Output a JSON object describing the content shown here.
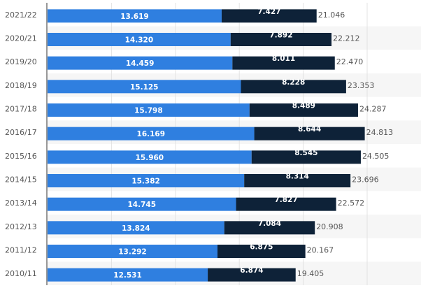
{
  "chart_data": {
    "type": "bar",
    "orientation": "horizontal",
    "stacked": true,
    "categories": [
      "2021/22",
      "2020/21",
      "2019/20",
      "2018/19",
      "2017/18",
      "2016/17",
      "2015/16",
      "2014/15",
      "2013/14",
      "2012/13",
      "2011/12",
      "2010/11"
    ],
    "series": [
      {
        "color": "#2f7fe0",
        "values": [
          13.619,
          14.32,
          14.459,
          15.125,
          15.798,
          16.169,
          15.96,
          15.382,
          14.745,
          13.824,
          13.292,
          12.531
        ],
        "labels": [
          "13.619",
          "14.320",
          "14.459",
          "15.125",
          "15.798",
          "16.169",
          "15.960",
          "15.382",
          "14.745",
          "13.824",
          "13.292",
          "12.531"
        ]
      },
      {
        "color": "#0e2238",
        "values": [
          7.427,
          7.892,
          8.011,
          8.228,
          8.489,
          8.644,
          8.545,
          8.314,
          7.827,
          7.084,
          6.875,
          6.874
        ],
        "labels": [
          "7.427",
          "7.892",
          "8.011",
          "8.228",
          "8.489",
          "8.644",
          "8.545",
          "8.314",
          "7.827",
          "7.084",
          "6.875",
          "6.874"
        ]
      }
    ],
    "totals": [
      "21.046",
      "22.212",
      "22.470",
      "23.353",
      "24.287",
      "24.813",
      "24.505",
      "23.696",
      "22.572",
      "20.908",
      "20.167",
      "19.405"
    ],
    "xlim": [
      0,
      29
    ],
    "grid": true,
    "legend": "none"
  }
}
